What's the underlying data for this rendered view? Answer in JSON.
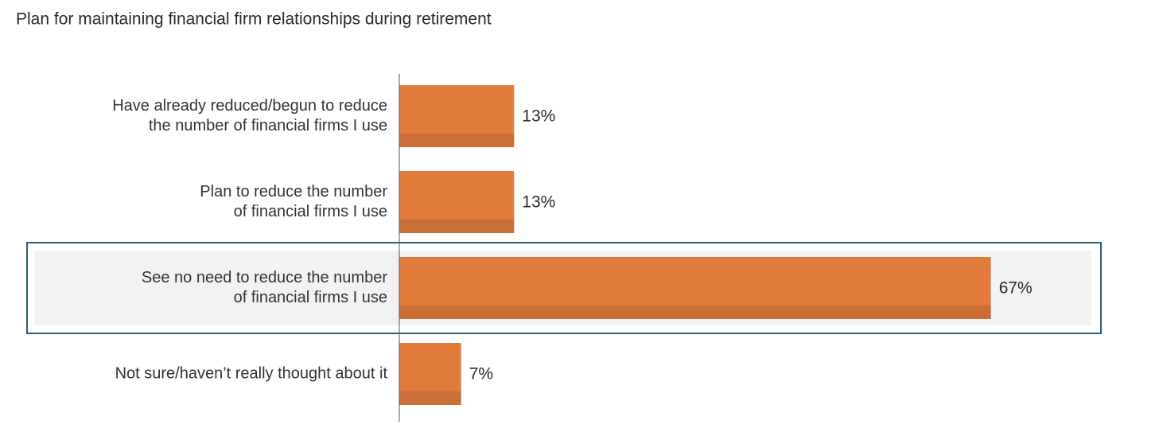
{
  "chart_data": {
    "type": "bar",
    "orientation": "horizontal",
    "title": "Plan for maintaining financial firm relationships during retirement",
    "categories": [
      [
        "Have already reduced/begun to reduce",
        "the number of financial firms I use"
      ],
      [
        "Plan to reduce the number",
        "of financial firms I use"
      ],
      [
        "See no need to reduce the number",
        "of financial firms I use"
      ],
      [
        "Not sure/haven’t really thought about it"
      ]
    ],
    "values": [
      13,
      13,
      67,
      7
    ],
    "value_labels": [
      "13%",
      "13%",
      "67%",
      "7%"
    ],
    "color": "#e17c3d",
    "highlight": 2
  }
}
